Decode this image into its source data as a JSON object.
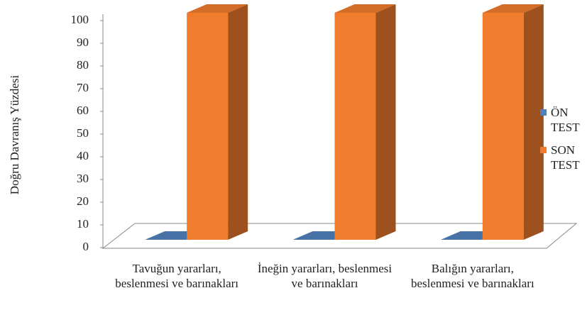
{
  "chart_data": {
    "type": "bar3d",
    "y_label": "Doğru Davranış Yüzdesi",
    "categories": [
      "Tavuğun yararları, beslenmesi ve barınakları",
      "İneğin yararları, beslenmesi ve barınakları",
      "Balığın yararları, beslenmesi ve barınakları"
    ],
    "series": [
      {
        "name": "ÖN TEST",
        "color": "#4f81bd",
        "values": [
          0,
          0,
          0
        ]
      },
      {
        "name": "SON TEST",
        "color": "#f07c2e",
        "values": [
          100,
          100,
          100
        ]
      }
    ],
    "ylim": [
      0,
      100
    ],
    "yticks": [
      0,
      10,
      20,
      30,
      40,
      50,
      60,
      70,
      80,
      90,
      100
    ],
    "legend": "right"
  }
}
